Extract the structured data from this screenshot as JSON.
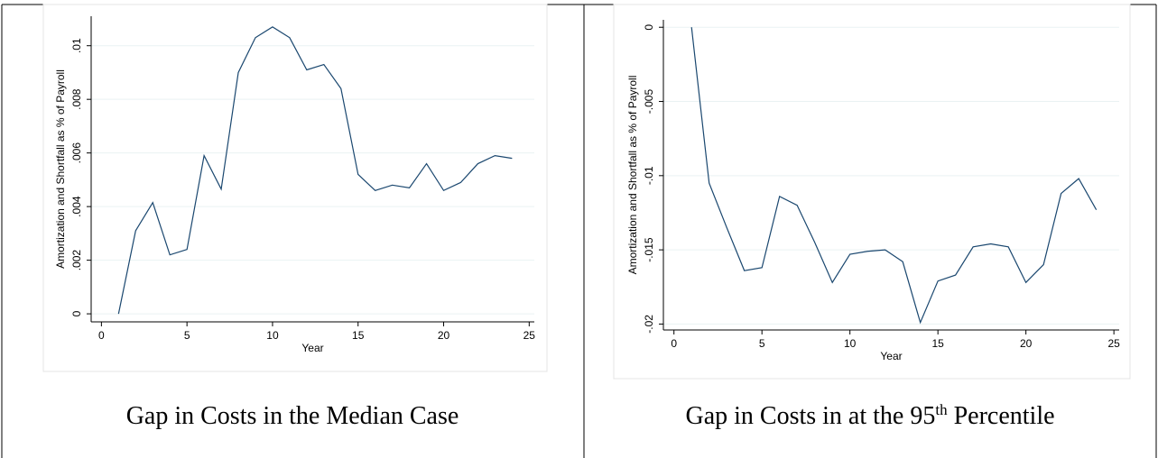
{
  "chart_data": [
    {
      "type": "line",
      "x": [
        1,
        2,
        3,
        4,
        5,
        6,
        7,
        8,
        9,
        10,
        11,
        12,
        13,
        14,
        15,
        16,
        17,
        18,
        19,
        20,
        21,
        22,
        23,
        24
      ],
      "values": [
        0,
        0.0031,
        0.00415,
        0.0022,
        0.0024,
        0.0059,
        0.00465,
        0.009,
        0.0103,
        0.0107,
        0.0103,
        0.0091,
        0.0093,
        0.0084,
        0.0052,
        0.0046,
        0.0048,
        0.0047,
        0.0056,
        0.0046,
        0.0049,
        0.0056,
        0.0059,
        0.0058
      ],
      "color": "#1a476f",
      "xlabel": "Year",
      "ylabel": "Amortization and Shortfall as % of Payroll",
      "xlim": [
        -0.6,
        25.3
      ],
      "xticks": [
        0,
        5,
        10,
        15,
        20,
        25
      ],
      "ylim": [
        -0.0003,
        0.0111
      ],
      "yticks": [
        0,
        {
          "value": 0.002,
          "label": ".002"
        },
        {
          "value": 0.004,
          "label": ".004"
        },
        {
          "value": 0.006,
          "label": ".006"
        },
        {
          "value": 0.008,
          "label": ".008"
        },
        {
          "value": 0.01,
          "label": ".01"
        }
      ],
      "grid": true,
      "caption": [
        "Gap in Costs in the Median Case"
      ]
    },
    {
      "type": "line",
      "x": [
        1,
        2,
        3,
        4,
        5,
        6,
        7,
        8,
        9,
        10,
        11,
        12,
        13,
        14,
        15,
        16,
        17,
        18,
        19,
        20,
        21,
        22,
        23,
        24
      ],
      "values": [
        0,
        -0.0105,
        -0.0135,
        -0.0164,
        -0.0162,
        -0.0114,
        -0.012,
        -0.0145,
        -0.0172,
        -0.0153,
        -0.0151,
        -0.015,
        -0.0158,
        -0.0199,
        -0.0171,
        -0.0167,
        -0.0148,
        -0.0146,
        -0.0148,
        -0.0172,
        -0.016,
        -0.0112,
        -0.0102,
        -0.0123
      ],
      "color": "#1a476f",
      "xlabel": "Year",
      "ylabel": "Amortization and Shortfall as % of Payroll",
      "xlim": [
        -0.6,
        25.3
      ],
      "xticks": [
        0,
        5,
        10,
        15,
        20,
        25
      ],
      "ylim": [
        -0.0204,
        0.0005
      ],
      "yticks": [
        {
          "value": -0.02,
          "label": "-.02"
        },
        {
          "value": -0.015,
          "label": "-.015"
        },
        {
          "value": -0.01,
          "label": "-.01"
        },
        {
          "value": -0.005,
          "label": "-.005"
        },
        0
      ],
      "grid": true,
      "caption": [
        "Gap in Costs in at the 95",
        "th",
        " Percentile"
      ]
    }
  ]
}
